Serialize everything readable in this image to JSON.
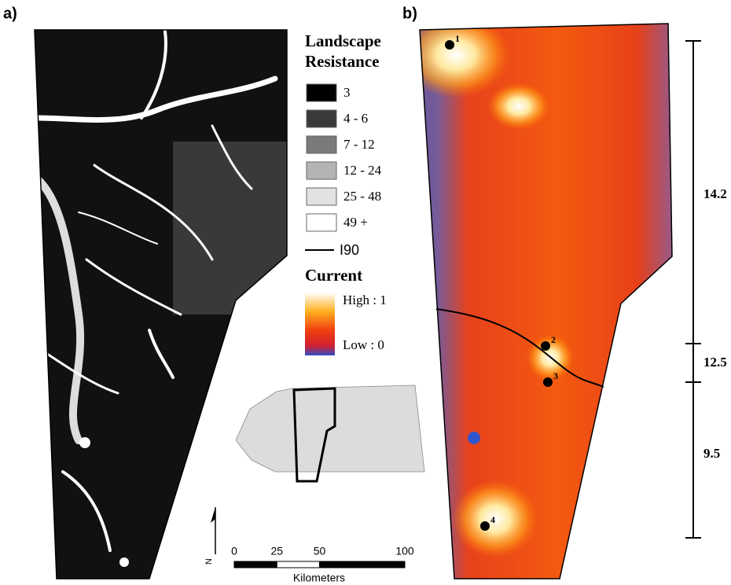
{
  "panel_labels": [
    "a)",
    "b)"
  ],
  "legend": {
    "title_lines": [
      "Landscape",
      "Resistance"
    ],
    "items": [
      {
        "label": "3",
        "color": "#000000"
      },
      {
        "label": "4 - 6",
        "color": "#3a3a3a"
      },
      {
        "label": "7 - 12",
        "color": "#7a7a7a"
      },
      {
        "label": "12 - 24",
        "color": "#b4b4b4"
      },
      {
        "label": "25 - 48",
        "color": "#e2e2e2"
      },
      {
        "label": "49 +",
        "color": "#ffffff"
      }
    ],
    "road_label": "I90",
    "current_title": "Current",
    "current_high": "High : 1",
    "current_low": "Low : 0"
  },
  "scale_bar": {
    "ticks": [
      0,
      25,
      50,
      100
    ],
    "unit": "Kilometers"
  },
  "north": "N",
  "points": [
    "1",
    "2",
    "3",
    "4"
  ],
  "distances": [
    14.2,
    12.5,
    9.5
  ]
}
